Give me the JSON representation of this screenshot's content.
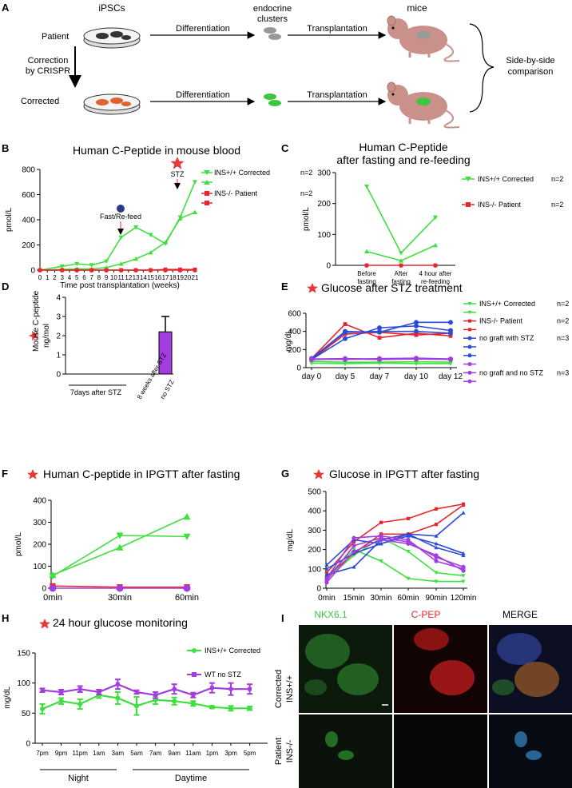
{
  "panel_letters": [
    "A",
    "B",
    "C",
    "D",
    "E",
    "F",
    "G",
    "H",
    "I"
  ],
  "colors": {
    "green": "#3ee03e",
    "red": "#e8252b",
    "blue": "#2b4bd8",
    "purple": "#a23ee0",
    "star": "#e33a3a",
    "darkblue": "#2a3a8a",
    "gray": "#999999"
  },
  "schematic": {
    "ipscs": "iPSCs",
    "patient": "Patient",
    "corrected": "Corrected",
    "correction_l1": "Correction",
    "correction_l2": "by CRISPR",
    "differentiation": "Differentiation",
    "endocrine_l1": "endocrine",
    "endocrine_l2": "clusters",
    "transplantation": "Transplantation",
    "mice": "mice",
    "compare_l1": "Side-by-side",
    "compare_l2": "comparison"
  },
  "microscopy": {
    "columns": [
      "NKX6.1",
      "C-PEP",
      "MERGE"
    ],
    "row1_l1": "Corrected",
    "row1_l2": "INS+/+",
    "row2_l1": "Patient",
    "row2_l2": "INS-/-"
  },
  "chart_data": [
    {
      "id": "B",
      "type": "line",
      "title": "Human C-Peptide in mouse blood",
      "xlabel": "Time post transplantation (weeks)",
      "ylabel": "pmol/L",
      "xlim": [
        0,
        21
      ],
      "ylim": [
        0,
        800
      ],
      "yticks": [
        "0",
        "200",
        "400",
        "600",
        "800"
      ],
      "xticks": [
        "0",
        "1",
        "2",
        "3",
        "4",
        "5",
        "6",
        "7",
        "8",
        "9",
        "10",
        "11",
        "12",
        "13",
        "14",
        "15",
        "16",
        "17",
        "18",
        "19",
        "20",
        "21"
      ],
      "series": [
        {
          "name": "INS+/+ Corrected",
          "n": "n=2",
          "color": "green",
          "marker": "tri-down",
          "x": [
            0,
            3,
            5,
            7,
            9,
            11,
            13,
            15,
            17,
            19,
            21
          ],
          "y": [
            0,
            30,
            50,
            40,
            70,
            260,
            340,
            280,
            210,
            420,
            700
          ]
        },
        {
          "name": "",
          "n": "",
          "color": "green",
          "marker": "tri-up",
          "x": [
            0,
            3,
            5,
            7,
            9,
            11,
            13,
            15,
            17,
            19,
            21
          ],
          "y": [
            0,
            5,
            10,
            10,
            20,
            50,
            90,
            140,
            220,
            410,
            460
          ]
        },
        {
          "name": "INS-/- Patient",
          "n": "n=2",
          "color": "red",
          "marker": "square",
          "x": [
            0,
            3,
            5,
            7,
            9,
            11,
            13,
            15,
            17,
            19,
            21
          ],
          "y": [
            0,
            0,
            0,
            0,
            0,
            0,
            0,
            0,
            5,
            5,
            5
          ]
        },
        {
          "name": "",
          "n": "",
          "color": "red",
          "marker": "square",
          "x": [
            0,
            3,
            5,
            7,
            9,
            11,
            13,
            15,
            17,
            19,
            21
          ],
          "y": [
            0,
            0,
            0,
            0,
            0,
            0,
            0,
            0,
            0,
            0,
            0
          ]
        }
      ],
      "annotations": {
        "fast_refeed": "Fast/Re-feed",
        "stz": "STZ"
      }
    },
    {
      "id": "C",
      "type": "line",
      "title_l1": "Human C-Peptide",
      "title_l2": "after fasting and re-feeding",
      "ylabel": "pmol/L",
      "ylim": [
        0,
        300
      ],
      "yticks": [
        "0",
        "100",
        "200",
        "300"
      ],
      "categories": [
        [
          "Before",
          "fasting"
        ],
        [
          "After",
          "fasting"
        ],
        [
          "4 hour after",
          "re-feeding"
        ]
      ],
      "series": [
        {
          "name": "INS+/+ Corrected",
          "n": "n=2",
          "color": "green",
          "values": [
            255,
            40,
            155
          ]
        },
        {
          "name": "",
          "n": "",
          "color": "green",
          "values": [
            45,
            15,
            65
          ]
        },
        {
          "name": "INS-/- Patient",
          "n": "n=2",
          "color": "red",
          "values": [
            0,
            0,
            0
          ]
        }
      ]
    },
    {
      "id": "D",
      "type": "bar",
      "ylabel_l1": "Mouse C-peptide",
      "ylabel_l2": "ng/mol",
      "ylim": [
        0,
        4
      ],
      "yticks": [
        "0",
        "1",
        "2",
        "3",
        "4"
      ],
      "categories": [
        "7days after STZ",
        "8 weeks after STZ",
        "no STZ"
      ],
      "values": [
        0,
        0,
        2.2
      ],
      "error": [
        0,
        0,
        0.8
      ],
      "color": "purple"
    },
    {
      "id": "E",
      "type": "line",
      "title": "Glucose after STZ treatment",
      "ylabel": "mg/dL",
      "ylim": [
        0,
        600
      ],
      "yticks": [
        "0",
        "200",
        "400",
        "600"
      ],
      "categories": [
        "day 0",
        "day 5",
        "day 7",
        "day 10",
        "day 12"
      ],
      "legend": [
        {
          "label": "INS+/+ Corrected",
          "n": "n=2",
          "color": "green"
        },
        {
          "label": "",
          "n": "",
          "color": "green"
        },
        {
          "label": "INS-/- Patient",
          "n": "n=2",
          "color": "red"
        },
        {
          "label": "",
          "n": "",
          "color": "red"
        },
        {
          "label": "no graft with STZ",
          "n": "n=3",
          "color": "blue"
        },
        {
          "label": "",
          "n": "",
          "color": "blue"
        },
        {
          "label": "",
          "n": "",
          "color": "blue"
        },
        {
          "label": "",
          "n": "",
          "color": "purple"
        },
        {
          "label": "no graft and no STZ",
          "n": "n=3",
          "color": "purple"
        },
        {
          "label": "",
          "n": "",
          "color": "purple"
        }
      ],
      "series": [
        {
          "color": "green",
          "values": [
            70,
            60,
            60,
            65,
            60
          ]
        },
        {
          "color": "green",
          "values": [
            50,
            45,
            50,
            45,
            45
          ]
        },
        {
          "color": "red",
          "values": [
            100,
            480,
            330,
            380,
            350
          ]
        },
        {
          "color": "red",
          "values": [
            90,
            370,
            390,
            360,
            380
          ]
        },
        {
          "color": "blue",
          "values": [
            100,
            400,
            390,
            500,
            500
          ]
        },
        {
          "color": "blue",
          "values": [
            90,
            320,
            440,
            460,
            410
          ]
        },
        {
          "color": "blue",
          "values": [
            100,
            390,
            400,
            400,
            380
          ]
        },
        {
          "color": "purple",
          "values": [
            95,
            100,
            95,
            100,
            95
          ]
        },
        {
          "color": "purple",
          "values": [
            90,
            95,
            90,
            95,
            90
          ]
        },
        {
          "color": "purple",
          "values": [
            95,
            90,
            100,
            105,
            95
          ]
        }
      ]
    },
    {
      "id": "F",
      "type": "line",
      "title": "Human C-peptide in IPGTT after fasting",
      "ylabel": "pmol/L",
      "ylim": [
        0,
        400
      ],
      "yticks": [
        "0",
        "100",
        "200",
        "300",
        "400"
      ],
      "categories": [
        "0min",
        "30min",
        "60min"
      ],
      "series": [
        {
          "color": "green",
          "marker": "tri-up",
          "values": [
            60,
            185,
            325
          ]
        },
        {
          "color": "green",
          "marker": "tri-down",
          "values": [
            55,
            240,
            235
          ]
        },
        {
          "color": "red",
          "marker": "square",
          "values": [
            10,
            5,
            5
          ]
        },
        {
          "color": "purple",
          "marker": "circle",
          "values": [
            0,
            0,
            0
          ]
        }
      ]
    },
    {
      "id": "G",
      "type": "line",
      "title": "Glucose in IPGTT after fasting",
      "ylabel": "mg/dL",
      "ylim": [
        0,
        500
      ],
      "yticks": [
        "0",
        "100",
        "200",
        "300",
        "400",
        "500"
      ],
      "categories": [
        "0min",
        "15min",
        "30min",
        "60min",
        "90min",
        "120min"
      ],
      "series": [
        {
          "color": "green",
          "values": [
            60,
            200,
            140,
            50,
            35,
            35
          ]
        },
        {
          "color": "green",
          "values": [
            50,
            170,
            260,
            190,
            80,
            65
          ]
        },
        {
          "color": "red",
          "values": [
            80,
            240,
            340,
            360,
            410,
            435
          ]
        },
        {
          "color": "red",
          "values": [
            60,
            180,
            280,
            280,
            330,
            430
          ]
        },
        {
          "color": "blue",
          "values": [
            70,
            110,
            250,
            280,
            270,
            390
          ]
        },
        {
          "color": "blue",
          "values": [
            100,
            180,
            230,
            270,
            230,
            180
          ]
        },
        {
          "color": "blue",
          "values": [
            120,
            250,
            230,
            280,
            210,
            170
          ]
        },
        {
          "color": "purple",
          "values": [
            50,
            260,
            270,
            250,
            140,
            100
          ]
        },
        {
          "color": "purple",
          "values": [
            40,
            220,
            260,
            240,
            160,
            110
          ]
        },
        {
          "color": "purple",
          "values": [
            30,
            190,
            250,
            230,
            170,
            90
          ]
        }
      ]
    },
    {
      "id": "H",
      "type": "line",
      "title": "24 hour glucose monitoring",
      "ylabel": "mg/dL",
      "ylim": [
        0,
        150
      ],
      "yticks": [
        "0",
        "50",
        "100",
        "150"
      ],
      "categories": [
        "7pm",
        "9pm",
        "11pm",
        "1am",
        "3am",
        "5am",
        "7am",
        "9am",
        "11am",
        "1pm",
        "3pm",
        "5pm"
      ],
      "groups": [
        "Night",
        "Daytime"
      ],
      "series": [
        {
          "name": "INS+/+ Corrected",
          "color": "green",
          "values": [
            57,
            70,
            65,
            80,
            75,
            62,
            72,
            70,
            66,
            60,
            58,
            58
          ],
          "errors": [
            8,
            5,
            8,
            5,
            10,
            15,
            7,
            6,
            4,
            2,
            4,
            3
          ]
        },
        {
          "name": "WT no STZ",
          "color": "purple",
          "values": [
            88,
            85,
            90,
            85,
            98,
            85,
            80,
            90,
            80,
            92,
            90,
            90
          ],
          "errors": [
            3,
            4,
            5,
            4,
            8,
            3,
            5,
            8,
            4,
            8,
            10,
            8
          ]
        }
      ]
    }
  ]
}
